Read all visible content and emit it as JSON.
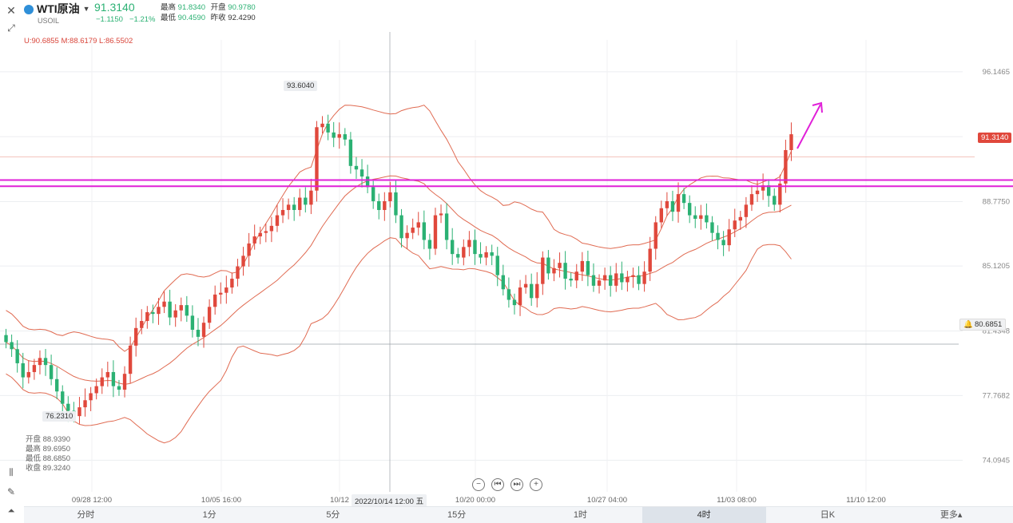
{
  "header": {
    "name": "WTI原油",
    "symbol": "USOIL",
    "price": "91.3140",
    "change": "−1.1150",
    "change_pct": "−1.21%",
    "high_label": "最高",
    "high": "91.8340",
    "open_label": "开盘",
    "open": "90.9780",
    "low_label": "最低",
    "low": "90.4590",
    "prev_label": "昨收",
    "prev": "92.4290"
  },
  "indicator": {
    "upper": "U:90.6855",
    "middle": "M:88.6179",
    "lower": "L:86.5502"
  },
  "ohlc": {
    "open": "开盘 88.9390",
    "high": "最高 89.6950",
    "low": "最低 88.6850",
    "close": "收盘 89.3240"
  },
  "price_labels": {
    "current": "91.3140",
    "crosshair": "80.6851",
    "max": "93.6040",
    "min": "76.2310",
    "crosshair_time": "2022/10/14 12:00 五"
  },
  "tabs": [
    {
      "label": "分时"
    },
    {
      "label": "1分"
    },
    {
      "label": "5分"
    },
    {
      "label": "15分"
    },
    {
      "label": "1时"
    },
    {
      "label": "4时"
    },
    {
      "label": "日K"
    },
    {
      "label": "更多▴"
    }
  ],
  "colors": {
    "up": "#e0483c",
    "down": "#2bb173",
    "bollinger": "#e06b52",
    "level_line": "#e020d8",
    "arrow": "#e020d8"
  },
  "chart_data": {
    "type": "candlestick",
    "y_axis_ticks": [
      "96.1465",
      "92.4606",
      "88.7750",
      "85.1205",
      "81.4348",
      "77.7682",
      "74.0945"
    ],
    "x_axis_ticks": [
      "09/28 12:00",
      "10/05 16:00",
      "10/12",
      "10/20 00:00",
      "10/27 04:00",
      "11/03 08:00",
      "11/10 12:00"
    ],
    "ylim": [
      72.3,
      97.5
    ],
    "horizontal_levels": [
      90.0,
      89.65
    ],
    "n": 140,
    "closes": [
      80.8,
      80.4,
      79.6,
      78.8,
      79.1,
      79.5,
      79.9,
      79.5,
      78.7,
      78.0,
      77.3,
      76.9,
      76.6,
      77.1,
      77.5,
      77.9,
      78.3,
      78.8,
      79.1,
      78.3,
      78.1,
      79.0,
      80.6,
      81.6,
      82.0,
      82.5,
      82.4,
      82.8,
      83.1,
      82.2,
      82.6,
      82.9,
      82.3,
      81.5,
      81.1,
      81.9,
      82.8,
      83.5,
      83.6,
      83.9,
      84.4,
      85.1,
      85.7,
      86.4,
      86.8,
      87.0,
      87.1,
      87.4,
      88.0,
      88.3,
      88.6,
      88.3,
      89.0,
      88.6,
      89.4,
      93.0,
      93.2,
      92.7,
      92.4,
      92.6,
      92.3,
      90.8,
      90.6,
      90.2,
      89.6,
      88.8,
      88.3,
      88.8,
      89.3,
      88.0,
      86.7,
      87.0,
      87.3,
      87.6,
      86.6,
      86.1,
      88.0,
      88.1,
      86.6,
      85.8,
      85.6,
      86.2,
      86.6,
      85.8,
      85.6,
      85.9,
      85.7,
      84.6,
      83.8,
      83.2,
      82.9,
      83.9,
      84.1,
      83.3,
      84.1,
      85.6,
      84.7,
      85.0,
      85.3,
      84.4,
      84.3,
      84.8,
      85.4,
      84.6,
      84.0,
      84.3,
      84.6,
      84.0,
      84.7,
      84.2,
      84.5,
      84.6,
      84.1,
      84.8,
      86.1,
      87.6,
      88.4,
      88.8,
      88.2,
      89.2,
      88.7,
      88.0,
      87.8,
      88.0,
      87.6,
      87.0,
      86.6,
      86.3,
      87.2,
      87.7,
      87.9,
      88.6,
      89.2,
      89.4,
      89.7,
      89.1,
      88.6,
      89.8,
      91.7,
      92.6
    ]
  }
}
